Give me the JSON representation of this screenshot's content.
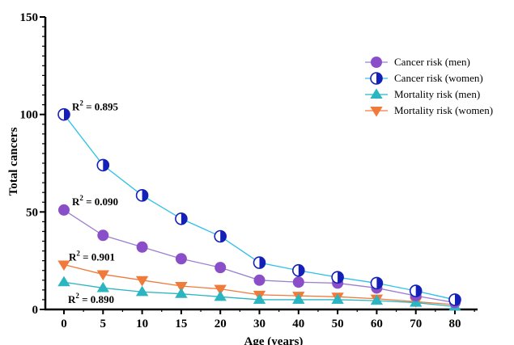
{
  "chart_data": {
    "type": "line",
    "categories": [
      "0",
      "5",
      "10",
      "15",
      "20",
      "30",
      "40",
      "50",
      "60",
      "70",
      "80"
    ],
    "xlabel": "Age (years)",
    "ylabel": "Total cancers",
    "ylim": [
      0,
      150
    ],
    "yticks": [
      "0",
      "50",
      "100",
      "150"
    ],
    "grid": false,
    "legend_position": "top-right",
    "series": [
      {
        "name": "Cancer risk (men)",
        "color": "#8a4fc8",
        "line_color": "#9b7fd0",
        "marker": "circle",
        "values": [
          51,
          38,
          32,
          26,
          21.5,
          15,
          14,
          13.5,
          11,
          7,
          3.5
        ]
      },
      {
        "name": "Cancer risk (women)",
        "color": "#1520b8",
        "line_color": "#30c0e8",
        "marker": "half-filled-circle",
        "values": [
          100,
          74,
          58.5,
          46.5,
          37.5,
          24,
          20,
          16.5,
          13.5,
          9.5,
          5
        ]
      },
      {
        "name": "Mortality risk (men)",
        "color": "#2ab5c0",
        "line_color": "#2ab5c0",
        "marker": "triangle-up",
        "values": [
          14,
          11,
          9,
          8,
          6.5,
          5,
          5,
          5,
          4.5,
          3.5,
          1.5
        ]
      },
      {
        "name": "Mortality risk (women)",
        "color": "#f07a3a",
        "line_color": "#f07a3a",
        "marker": "triangle-down",
        "values": [
          23,
          18,
          15,
          12,
          10.5,
          7.5,
          7,
          6.5,
          5.5,
          4,
          2.5
        ]
      }
    ],
    "annotations": [
      {
        "series": 1,
        "r2_prefix": "R",
        "r2_sup": "2",
        "r2_value": " = 0.895"
      },
      {
        "series": 0,
        "r2_prefix": "R",
        "r2_sup": "2",
        "r2_value": " = 0.090"
      },
      {
        "series": 3,
        "r2_prefix": "R",
        "r2_sup": "2",
        "r2_value": " = 0.901"
      },
      {
        "series": 2,
        "r2_prefix": "R",
        "r2_sup": "2",
        "r2_value": " = 0.890"
      }
    ]
  }
}
